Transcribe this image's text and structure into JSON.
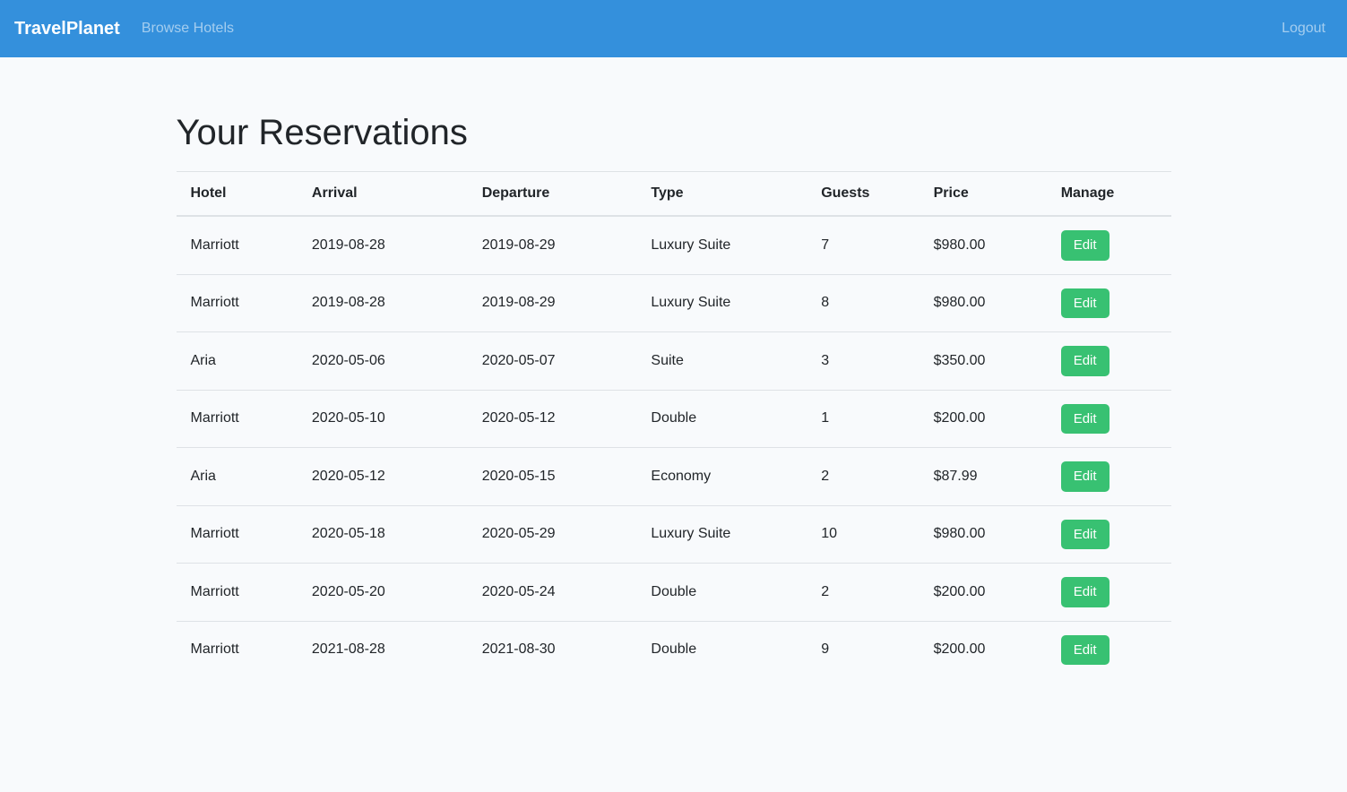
{
  "navbar": {
    "brand": "TravelPlanet",
    "links": [
      {
        "label": "Browse Hotels"
      }
    ],
    "logout_label": "Logout"
  },
  "page": {
    "title": "Your Reservations"
  },
  "table": {
    "headers": [
      "Hotel",
      "Arrival",
      "Departure",
      "Type",
      "Guests",
      "Price",
      "Manage"
    ],
    "edit_label": "Edit",
    "rows": [
      {
        "hotel": "Marriott",
        "arrival": "2019-08-28",
        "departure": "2019-08-29",
        "type": "Luxury Suite",
        "guests": "7",
        "price": "$980.00"
      },
      {
        "hotel": "Marriott",
        "arrival": "2019-08-28",
        "departure": "2019-08-29",
        "type": "Luxury Suite",
        "guests": "8",
        "price": "$980.00"
      },
      {
        "hotel": "Aria",
        "arrival": "2020-05-06",
        "departure": "2020-05-07",
        "type": "Suite",
        "guests": "3",
        "price": "$350.00"
      },
      {
        "hotel": "Marriott",
        "arrival": "2020-05-10",
        "departure": "2020-05-12",
        "type": "Double",
        "guests": "1",
        "price": "$200.00"
      },
      {
        "hotel": "Aria",
        "arrival": "2020-05-12",
        "departure": "2020-05-15",
        "type": "Economy",
        "guests": "2",
        "price": "$87.99"
      },
      {
        "hotel": "Marriott",
        "arrival": "2020-05-18",
        "departure": "2020-05-29",
        "type": "Luxury Suite",
        "guests": "10",
        "price": "$980.00"
      },
      {
        "hotel": "Marriott",
        "arrival": "2020-05-20",
        "departure": "2020-05-24",
        "type": "Double",
        "guests": "2",
        "price": "$200.00"
      },
      {
        "hotel": "Marriott",
        "arrival": "2021-08-28",
        "departure": "2021-08-30",
        "type": "Double",
        "guests": "9",
        "price": "$200.00"
      }
    ]
  },
  "colors": {
    "navbar": "#3490dc",
    "button": "#38c172",
    "background": "#f8fafc",
    "border": "#dee2e6",
    "text": "#212529"
  }
}
